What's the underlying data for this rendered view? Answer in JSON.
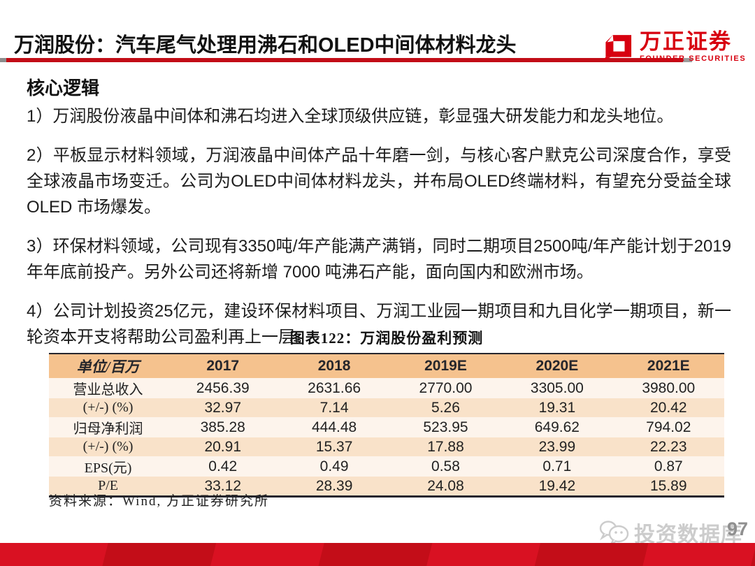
{
  "header": {
    "title": "万润股份：汽车尾气处理用沸石和OLED中间体材料龙头",
    "logo": {
      "name_cn": "万正证券",
      "name_en": "FOUNDER SECURITIES"
    },
    "colors": {
      "accent_red": "#c20d17",
      "logo_red": "#d7000f",
      "rule_cap_gray": "#8c8c8c"
    }
  },
  "content": {
    "section_heading": "核心逻辑",
    "paragraphs": [
      "1）万润股份液晶中间体和沸石均进入全球顶级供应链，彰显强大研发能力和龙头地位。",
      "2）平板显示材料领域，万润液晶中间体产品十年磨一剑，与核心客户默克公司深度合作，享受全球液晶市场变迁。公司为OLED中间体材料龙头，并布局OLED终端材料，有望充分受益全球OLED 市场爆发。",
      "3）环保材料领域，公司现有3350吨/年产能满产满销，同时二期项目2500吨/年产能计划于2019 年年底前投产。另外公司还将新增 7000 吨沸石产能，面向国内和欧洲市场。",
      "4）公司计划投资25亿元，建设环保材料项目、万润工业园一期项目和九目化学一期项目，新一轮资本开支将帮助公司盈利再上一层。"
    ]
  },
  "chart_data": {
    "type": "table",
    "title": "图表122：万润股份盈利预测",
    "columns": [
      "单位/百万",
      "2017",
      "2018",
      "2019E",
      "2020E",
      "2021E"
    ],
    "rows": [
      {
        "label": "营业总收入",
        "values": [
          "2456.39",
          "2631.66",
          "2770.00",
          "3305.00",
          "3980.00"
        ]
      },
      {
        "label": "(+/-) (%)",
        "values": [
          "32.97",
          "7.14",
          "5.26",
          "19.31",
          "20.42"
        ]
      },
      {
        "label": "归母净利润",
        "values": [
          "385.28",
          "444.48",
          "523.95",
          "649.62",
          "794.02"
        ]
      },
      {
        "label": "(+/-) (%)",
        "values": [
          "20.91",
          "15.37",
          "17.88",
          "23.99",
          "22.23"
        ]
      },
      {
        "label": "EPS(元)",
        "values": [
          "0.42",
          "0.49",
          "0.58",
          "0.71",
          "0.87"
        ]
      },
      {
        "label": "P/E",
        "values": [
          "33.12",
          "28.39",
          "24.08",
          "19.42",
          "15.89"
        ]
      }
    ],
    "source": "资料来源：Wind, 方正证券研究所",
    "layout": {
      "header_bg": "#f5c28e",
      "row_bg_odd": "#fdf4ec",
      "row_bg_even": "#f9e2c9",
      "border_color": "#26262e"
    }
  },
  "footer": {
    "watermark_text": "投资数据库",
    "page_number": "97"
  }
}
